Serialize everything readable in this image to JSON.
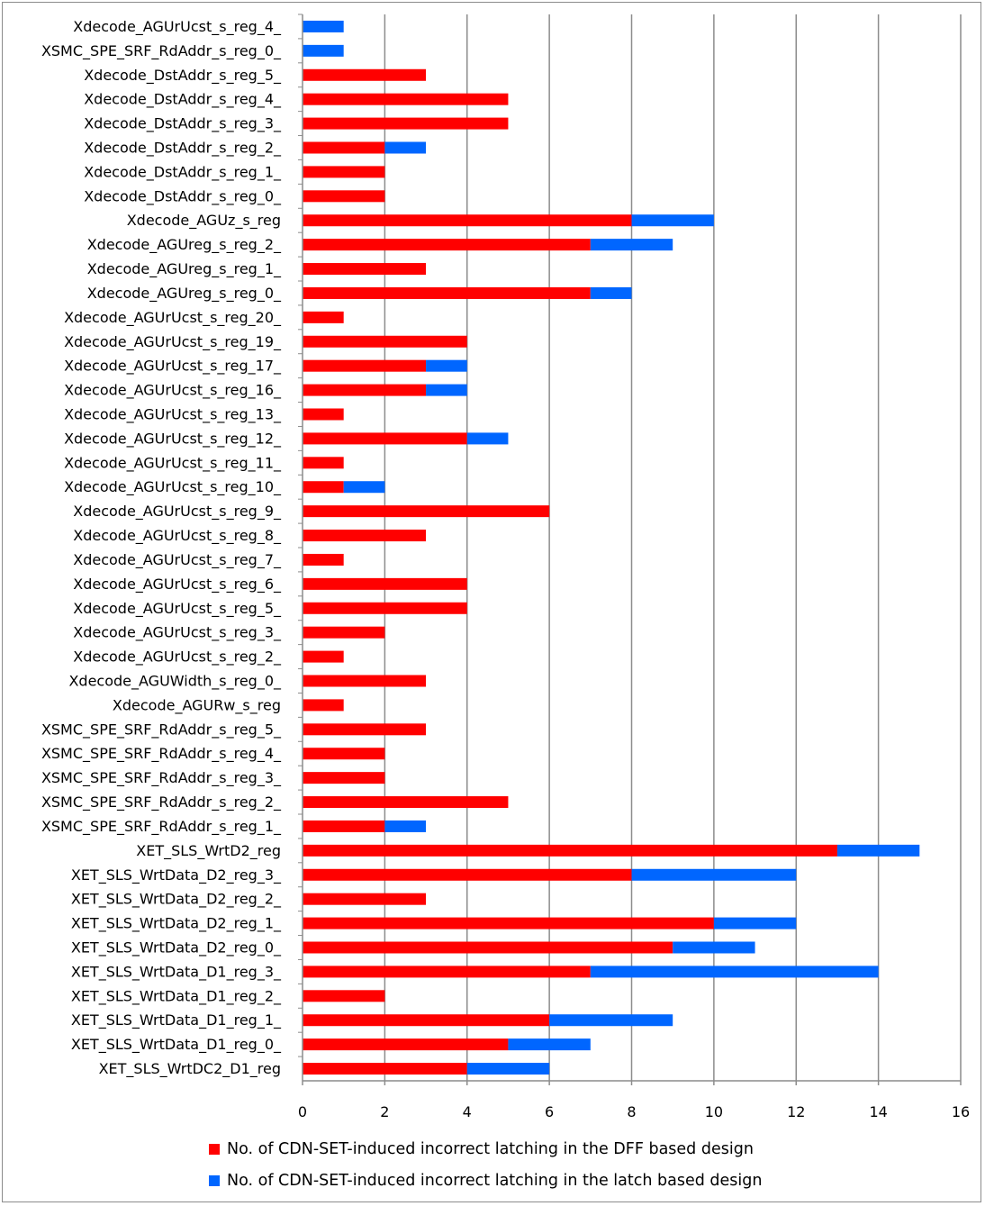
{
  "chart_data": {
    "type": "bar",
    "orientation": "horizontal",
    "stacked": true,
    "categories": [
      "Xdecode_AGUrUcst_s_reg_4_",
      "XSMC_SPE_SRF_RdAddr_s_reg_0_",
      "Xdecode_DstAddr_s_reg_5_",
      "Xdecode_DstAddr_s_reg_4_",
      "Xdecode_DstAddr_s_reg_3_",
      "Xdecode_DstAddr_s_reg_2_",
      "Xdecode_DstAddr_s_reg_1_",
      "Xdecode_DstAddr_s_reg_0_",
      "Xdecode_AGUz_s_reg",
      "Xdecode_AGUreg_s_reg_2_",
      "Xdecode_AGUreg_s_reg_1_",
      "Xdecode_AGUreg_s_reg_0_",
      "Xdecode_AGUrUcst_s_reg_20_",
      "Xdecode_AGUrUcst_s_reg_19_",
      "Xdecode_AGUrUcst_s_reg_17_",
      "Xdecode_AGUrUcst_s_reg_16_",
      "Xdecode_AGUrUcst_s_reg_13_",
      "Xdecode_AGUrUcst_s_reg_12_",
      "Xdecode_AGUrUcst_s_reg_11_",
      "Xdecode_AGUrUcst_s_reg_10_",
      "Xdecode_AGUrUcst_s_reg_9_",
      "Xdecode_AGUrUcst_s_reg_8_",
      "Xdecode_AGUrUcst_s_reg_7_",
      "Xdecode_AGUrUcst_s_reg_6_",
      "Xdecode_AGUrUcst_s_reg_5_",
      "Xdecode_AGUrUcst_s_reg_3_",
      "Xdecode_AGUrUcst_s_reg_2_",
      "Xdecode_AGUWidth_s_reg_0_",
      "Xdecode_AGURw_s_reg",
      "XSMC_SPE_SRF_RdAddr_s_reg_5_",
      "XSMC_SPE_SRF_RdAddr_s_reg_4_",
      "XSMC_SPE_SRF_RdAddr_s_reg_3_",
      "XSMC_SPE_SRF_RdAddr_s_reg_2_",
      "XSMC_SPE_SRF_RdAddr_s_reg_1_",
      "XET_SLS_WrtD2_reg",
      "XET_SLS_WrtData_D2_reg_3_",
      "XET_SLS_WrtData_D2_reg_2_",
      "XET_SLS_WrtData_D2_reg_1_",
      "XET_SLS_WrtData_D2_reg_0_",
      "XET_SLS_WrtData_D1_reg_3_",
      "XET_SLS_WrtData_D1_reg_2_",
      "XET_SLS_WrtData_D1_reg_1_",
      "XET_SLS_WrtData_D1_reg_0_",
      "XET_SLS_WrtDC2_D1_reg"
    ],
    "series": [
      {
        "name": "No. of CDN-SET-induced incorrect latching in the DFF based design",
        "color": "#ff0000",
        "values": [
          0,
          0,
          3,
          5,
          5,
          2,
          2,
          2,
          8,
          7,
          3,
          7,
          1,
          4,
          3,
          3,
          1,
          4,
          1,
          1,
          6,
          3,
          1,
          4,
          4,
          2,
          1,
          3,
          1,
          3,
          2,
          2,
          5,
          2,
          13,
          8,
          3,
          10,
          9,
          7,
          2,
          6,
          5,
          4
        ]
      },
      {
        "name": "No. of CDN-SET-induced incorrect latching in the latch based design",
        "color": "#0066ff",
        "values": [
          1,
          1,
          0,
          0,
          0,
          1,
          0,
          0,
          2,
          2,
          0,
          1,
          0,
          0,
          1,
          1,
          0,
          1,
          0,
          1,
          0,
          0,
          0,
          0,
          0,
          0,
          0,
          0,
          0,
          0,
          0,
          0,
          0,
          1,
          2,
          4,
          0,
          2,
          2,
          7,
          0,
          3,
          2,
          2
        ]
      }
    ],
    "x_ticks": [
      "0",
      "2",
      "4",
      "6",
      "8",
      "10",
      "12",
      "14",
      "16"
    ],
    "xlim": [
      0,
      16
    ],
    "grid": "vertical",
    "legend_position": "bottom"
  }
}
